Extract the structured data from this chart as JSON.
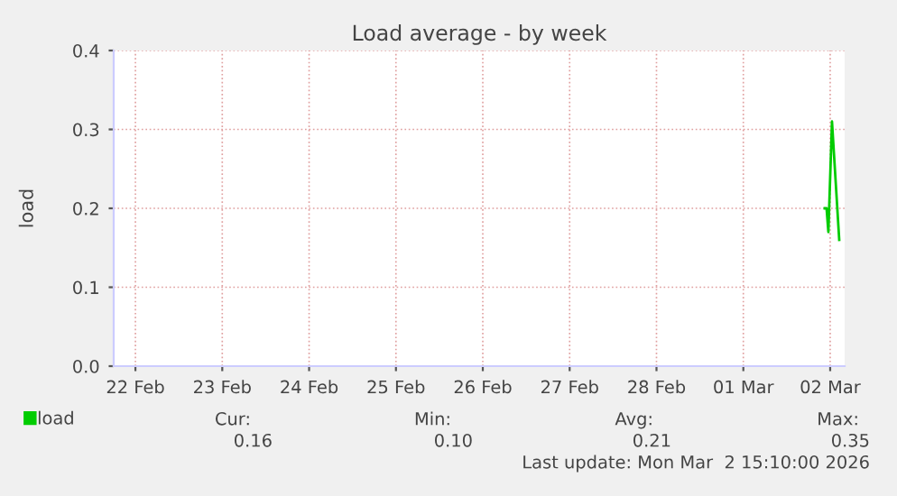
{
  "chart_data": {
    "type": "line",
    "title": "Load average - by week",
    "ylabel": "load",
    "x": [
      "2026-03-02T10:30",
      "2026-03-02T11:00",
      "2026-03-02T11:30",
      "2026-03-02T12:30",
      "2026-03-02T14:30"
    ],
    "series": [
      {
        "name": "load",
        "color": "#00cc00",
        "values": [
          0.2,
          0.2,
          0.17,
          0.31,
          0.16
        ]
      }
    ],
    "xlim": [
      "2026-02-22T06:00",
      "2026-03-02T16:00"
    ],
    "xticks": [
      {
        "value": "2026-02-22T12:00",
        "label": "22 Feb"
      },
      {
        "value": "2026-02-23T12:00",
        "label": "23 Feb"
      },
      {
        "value": "2026-02-24T12:00",
        "label": "24 Feb"
      },
      {
        "value": "2026-02-25T12:00",
        "label": "25 Feb"
      },
      {
        "value": "2026-02-26T12:00",
        "label": "26 Feb"
      },
      {
        "value": "2026-02-27T12:00",
        "label": "27 Feb"
      },
      {
        "value": "2026-02-28T12:00",
        "label": "28 Feb"
      },
      {
        "value": "2026-03-01T12:00",
        "label": "01 Mar"
      },
      {
        "value": "2026-03-02T12:00",
        "label": "02 Mar"
      }
    ],
    "ylim": [
      0,
      0.4
    ],
    "yticks": [
      {
        "value": 0,
        "label": "0.0"
      },
      {
        "value": 0.1,
        "label": "0.1"
      },
      {
        "value": 0.2,
        "label": "0.2"
      },
      {
        "value": 0.3,
        "label": "0.3"
      },
      {
        "value": 0.4,
        "label": "0.4"
      }
    ],
    "grid": true,
    "legend": "bottom left",
    "marker": "none",
    "line_style": "solid",
    "annotations": [
      "Cur:",
      "Min:",
      "Avg:",
      "Max:",
      "0.16",
      "0.10",
      "0.21",
      "0.35",
      "Last update: Mon Mar  2 15:10:00 2026"
    ]
  }
}
